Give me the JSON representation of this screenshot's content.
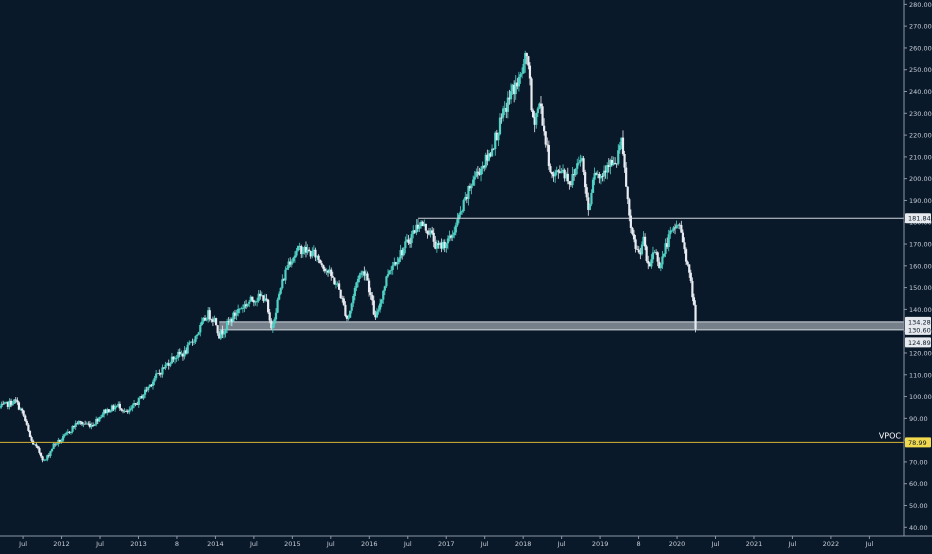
{
  "colors": {
    "background": "#0a1929",
    "axis_line": "#8a96a8",
    "axis_text": "#c8ced8",
    "candle_up": "#4fd1c5",
    "candle_down": "#e8ecf2",
    "resistance_line": "#d0d6de",
    "support_zone": "#cfd5dc",
    "vpoc_line": "#d7b436",
    "vpoc_badge": "#f2d94e"
  },
  "chart_data": {
    "type": "candlestick",
    "title": "",
    "y_axis": {
      "range": [
        36,
        282
      ],
      "position": "right",
      "ticks": [
        "40.00",
        "50.00",
        "60.00",
        "70.00",
        "80.00",
        "90.00",
        "100.00",
        "110.00",
        "120.00",
        "130.00",
        "140.00",
        "150.00",
        "160.00",
        "170.00",
        "180.00",
        "190.00",
        "200.00",
        "210.00",
        "220.00",
        "230.00",
        "240.00",
        "250.00",
        "260.00",
        "270.00",
        "280.00"
      ]
    },
    "x_axis": {
      "range": [
        2011.2,
        2022.95
      ],
      "ticks": [
        {
          "label": "Jul",
          "t": 2011.5
        },
        {
          "label": "2012",
          "t": 2012.0
        },
        {
          "label": "Jul",
          "t": 2012.5
        },
        {
          "label": "2013",
          "t": 2013.0
        },
        {
          "label": "8",
          "t": 2013.5
        },
        {
          "label": "2014",
          "t": 2014.0
        },
        {
          "label": "Jul",
          "t": 2014.5
        },
        {
          "label": "2015",
          "t": 2015.0
        },
        {
          "label": "Jul",
          "t": 2015.5
        },
        {
          "label": "2016",
          "t": 2016.0
        },
        {
          "label": "Jul",
          "t": 2016.5
        },
        {
          "label": "2017",
          "t": 2017.0
        },
        {
          "label": "Jul",
          "t": 2017.5
        },
        {
          "label": "2018",
          "t": 2018.0
        },
        {
          "label": "Jul",
          "t": 2018.5
        },
        {
          "label": "2019",
          "t": 2019.0
        },
        {
          "label": "8",
          "t": 2019.5
        },
        {
          "label": "2020",
          "t": 2020.0
        },
        {
          "label": "Jul",
          "t": 2020.5
        },
        {
          "label": "2021",
          "t": 2021.0
        },
        {
          "label": "Jul",
          "t": 2021.5
        },
        {
          "label": "2022",
          "t": 2022.0
        },
        {
          "label": "Jul",
          "t": 2022.5
        }
      ]
    },
    "price_path": [
      [
        2011.2,
        95
      ],
      [
        2011.4,
        98
      ],
      [
        2011.5,
        92
      ],
      [
        2011.6,
        80
      ],
      [
        2011.72,
        74
      ],
      [
        2011.78,
        70
      ],
      [
        2011.9,
        78
      ],
      [
        2012.0,
        80
      ],
      [
        2012.2,
        88
      ],
      [
        2012.4,
        87
      ],
      [
        2012.55,
        93
      ],
      [
        2012.75,
        96
      ],
      [
        2012.85,
        92
      ],
      [
        2013.0,
        98
      ],
      [
        2013.2,
        108
      ],
      [
        2013.45,
        118
      ],
      [
        2013.6,
        120
      ],
      [
        2013.75,
        128
      ],
      [
        2013.9,
        138
      ],
      [
        2014.0,
        135
      ],
      [
        2014.05,
        128
      ],
      [
        2014.3,
        140
      ],
      [
        2014.5,
        145
      ],
      [
        2014.65,
        146
      ],
      [
        2014.72,
        130
      ],
      [
        2014.85,
        150
      ],
      [
        2014.95,
        162
      ],
      [
        2015.1,
        168
      ],
      [
        2015.3,
        165
      ],
      [
        2015.45,
        158
      ],
      [
        2015.6,
        150
      ],
      [
        2015.72,
        135
      ],
      [
        2015.85,
        155
      ],
      [
        2015.95,
        158
      ],
      [
        2016.08,
        135
      ],
      [
        2016.25,
        158
      ],
      [
        2016.45,
        168
      ],
      [
        2016.65,
        180
      ],
      [
        2016.8,
        175
      ],
      [
        2016.88,
        168
      ],
      [
        2017.05,
        172
      ],
      [
        2017.2,
        185
      ],
      [
        2017.35,
        200
      ],
      [
        2017.55,
        210
      ],
      [
        2017.7,
        225
      ],
      [
        2017.85,
        240
      ],
      [
        2017.95,
        245
      ],
      [
        2018.06,
        258
      ],
      [
        2018.12,
        225
      ],
      [
        2018.22,
        235
      ],
      [
        2018.3,
        215
      ],
      [
        2018.38,
        200
      ],
      [
        2018.5,
        205
      ],
      [
        2018.62,
        198
      ],
      [
        2018.75,
        212
      ],
      [
        2018.85,
        185
      ],
      [
        2018.92,
        205
      ],
      [
        2019.0,
        200
      ],
      [
        2019.1,
        208
      ],
      [
        2019.2,
        205
      ],
      [
        2019.27,
        218
      ],
      [
        2019.33,
        200
      ],
      [
        2019.4,
        175
      ],
      [
        2019.5,
        165
      ],
      [
        2019.56,
        172
      ],
      [
        2019.63,
        158
      ],
      [
        2019.7,
        168
      ],
      [
        2019.78,
        160
      ],
      [
        2019.88,
        172
      ],
      [
        2020.02,
        180
      ],
      [
        2020.1,
        168
      ],
      [
        2020.16,
        155
      ],
      [
        2020.21,
        145
      ],
      [
        2020.26,
        124.89
      ]
    ],
    "annotations": {
      "resistance": {
        "label": "181.84",
        "value": 181.84
      },
      "support_zone": {
        "upper": {
          "label": "134.28",
          "value": 134.28
        },
        "lower": {
          "label": "130.60",
          "value": 130.6
        },
        "start_t": 2014.05
      },
      "current_price": {
        "label": "124.89",
        "value": 124.89
      },
      "vpoc": {
        "name": "VPOC",
        "label": "78.99",
        "value": 78.99
      }
    }
  }
}
